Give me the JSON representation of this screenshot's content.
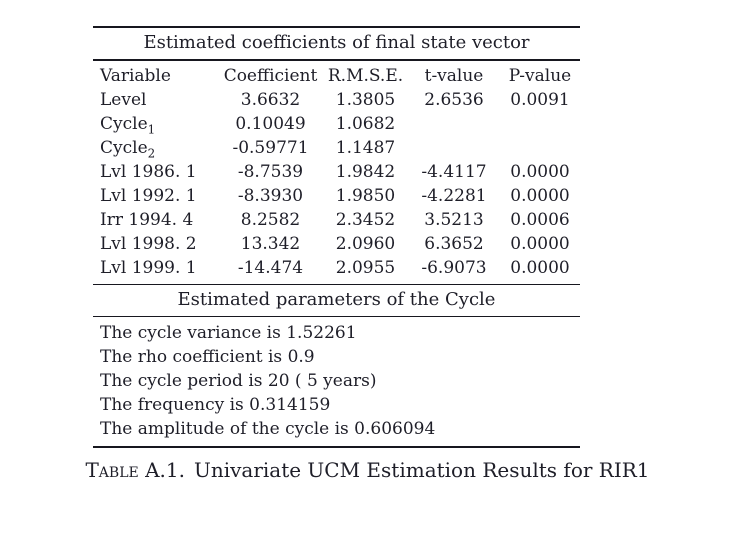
{
  "state_table": {
    "title": "Estimated coefficients of final state vector",
    "columns": [
      "Variable",
      "Coefficient",
      "R.M.S.E.",
      "t-value",
      "P-value"
    ],
    "rows": [
      {
        "variable": "Level",
        "variable_sub": "",
        "coefficient": "3.6632",
        "rmse": "1.3805",
        "t_value": "2.6536",
        "p_value": "0.0091"
      },
      {
        "variable": "Cycle",
        "variable_sub": "1",
        "coefficient": "0.10049",
        "rmse": "1.0682",
        "t_value": "",
        "p_value": ""
      },
      {
        "variable": "Cycle",
        "variable_sub": "2",
        "coefficient": "-0.59771",
        "rmse": "1.1487",
        "t_value": "",
        "p_value": ""
      },
      {
        "variable": "Lvl 1986. 1",
        "variable_sub": "",
        "coefficient": "-8.7539",
        "rmse": "1.9842",
        "t_value": "-4.4117",
        "p_value": "0.0000"
      },
      {
        "variable": "Lvl 1992. 1",
        "variable_sub": "",
        "coefficient": "-8.3930",
        "rmse": "1.9850",
        "t_value": "-4.2281",
        "p_value": "0.0000"
      },
      {
        "variable": "Irr 1994. 4",
        "variable_sub": "",
        "coefficient": "8.2582",
        "rmse": "2.3452",
        "t_value": "3.5213",
        "p_value": "0.0006"
      },
      {
        "variable": "Lvl 1998. 2",
        "variable_sub": "",
        "coefficient": "13.342",
        "rmse": "2.0960",
        "t_value": "6.3652",
        "p_value": "0.0000"
      },
      {
        "variable": "Lvl 1999. 1",
        "variable_sub": "",
        "coefficient": "-14.474",
        "rmse": "2.0955",
        "t_value": "-6.9073",
        "p_value": "0.0000"
      }
    ]
  },
  "cycle_section": {
    "title": "Estimated parameters of the Cycle",
    "lines": [
      "The cycle variance is 1.52261",
      "The rho coefficient is 0.9",
      "The cycle period is 20 ( 5 years)",
      "The frequency is 0.314159",
      "The amplitude of the cycle is 0.606094"
    ]
  },
  "caption": {
    "label": "Table A.1.",
    "text": "Univariate UCM Estimation Results for RIR1"
  },
  "colors": {
    "text": "#1e1e28",
    "rule": "#17171f",
    "background": "#ffffff"
  }
}
